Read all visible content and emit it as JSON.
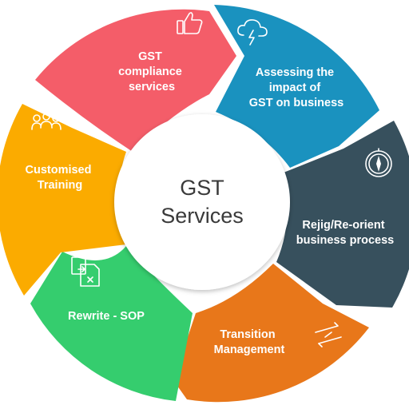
{
  "center": {
    "line1": "GST",
    "line2": "Services"
  },
  "segments": [
    {
      "id": "gst-compliance",
      "lines": [
        "GST",
        "compliance",
        "services"
      ],
      "color": "#f45d69",
      "icon": "thumbs-up-icon"
    },
    {
      "id": "assessing-impact",
      "lines": [
        "Assessing the",
        "impact of",
        "GST on business"
      ],
      "color": "#1a92bf",
      "icon": "cloud-lightning-icon"
    },
    {
      "id": "rejig-process",
      "lines": [
        "Rejig/Re-orient",
        "business process"
      ],
      "color": "#37505d",
      "icon": "compass-icon"
    },
    {
      "id": "transition-management",
      "lines": [
        "Transition",
        "Management"
      ],
      "color": "#e8771a",
      "icon": "transfer-arrows-icon"
    },
    {
      "id": "rewrite-sop",
      "lines": [
        "Rewrite - SOP"
      ],
      "color": "#35cd6e",
      "icon": "document-copy-icon"
    },
    {
      "id": "customised-training",
      "lines": [
        "Customised",
        "Training"
      ],
      "color": "#fbab00",
      "icon": "people-group-icon"
    }
  ]
}
